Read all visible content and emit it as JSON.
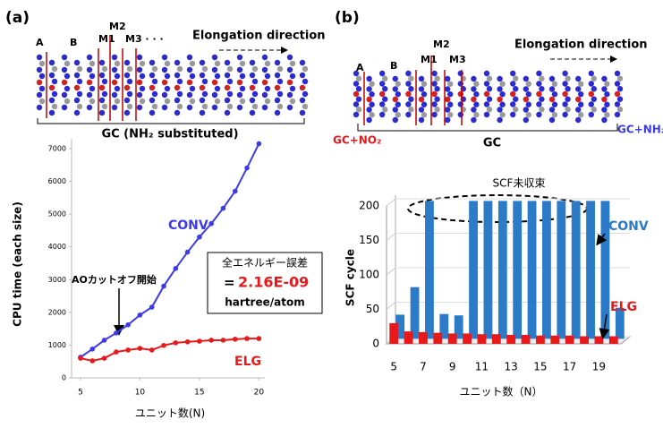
{
  "chart_data": [
    {
      "type": "line",
      "panel_label": "(a)",
      "x": [
        5,
        6,
        7,
        8,
        9,
        10,
        11,
        12,
        13,
        14,
        15,
        16,
        17,
        18,
        19,
        20
      ],
      "series": [
        {
          "name": "CONV",
          "color": "#3b3bea",
          "values": [
            630,
            880,
            1150,
            1370,
            1620,
            1920,
            2160,
            2800,
            3340,
            3840,
            4300,
            4710,
            5180,
            5700,
            6410,
            7150
          ]
        },
        {
          "name": "ELG",
          "color": "#e8191b",
          "values": [
            600,
            520,
            600,
            790,
            850,
            900,
            850,
            990,
            1070,
            1100,
            1120,
            1150,
            1150,
            1180,
            1200,
            1200
          ]
        }
      ],
      "xlim": [
        4.25,
        20.5
      ],
      "xticks": [
        5,
        10,
        15,
        20
      ],
      "ylim": [
        0,
        7300
      ],
      "yticks": [
        0,
        1000,
        2000,
        3000,
        4000,
        5000,
        6000,
        7000
      ],
      "x_label": "ユニット数(N)",
      "y_label": "CPU time (each size)",
      "annotations": {
        "ao_cutoff": "AOカットオフ開始",
        "error_title": "全エネルギー誤差",
        "error_eq": "=",
        "error_value": "2.16E-09",
        "error_unit": "hartree/atom"
      },
      "molecule_labels": {
        "a": "A",
        "b": "B",
        "m1": "M1",
        "m2": "M2",
        "m3": "M3 · · ·",
        "direction": "Elongation direction",
        "chain": "GC (NH₂ substituted)"
      }
    },
    {
      "type": "bar3d",
      "panel_label": "(b)",
      "categories": [
        "5",
        null,
        "7",
        null,
        "9",
        null,
        "11",
        null,
        "13",
        null,
        "15",
        null,
        "17",
        null,
        "19",
        null
      ],
      "series": [
        {
          "name": "CONV",
          "color": "#2b7bc9",
          "values": [
            35,
            75,
            200,
            36,
            34,
            200,
            200,
            200,
            200,
            200,
            200,
            200,
            200,
            200,
            200,
            45
          ]
        },
        {
          "name": "ELG",
          "color": "#e8191b",
          "values": [
            30,
            18,
            17,
            16,
            15,
            15,
            14,
            14,
            13,
            13,
            12,
            12,
            12,
            11,
            11,
            11
          ]
        }
      ],
      "ylim": [
        0,
        200
      ],
      "yticks": [
        0,
        50,
        100,
        150,
        200
      ],
      "x_label": "ユニット数（N）",
      "y_label": "SCF cycle",
      "annotations": {
        "unconverged": "SCF未収束"
      },
      "molecule_labels": {
        "a": "A",
        "b": "B",
        "m1": "M1",
        "m2": "M2",
        "m3": "M3",
        "direction": "Elongation direction",
        "left_end": "GC+NO₂",
        "chain": "GC",
        "right_end": "GC+NH₂"
      }
    }
  ]
}
